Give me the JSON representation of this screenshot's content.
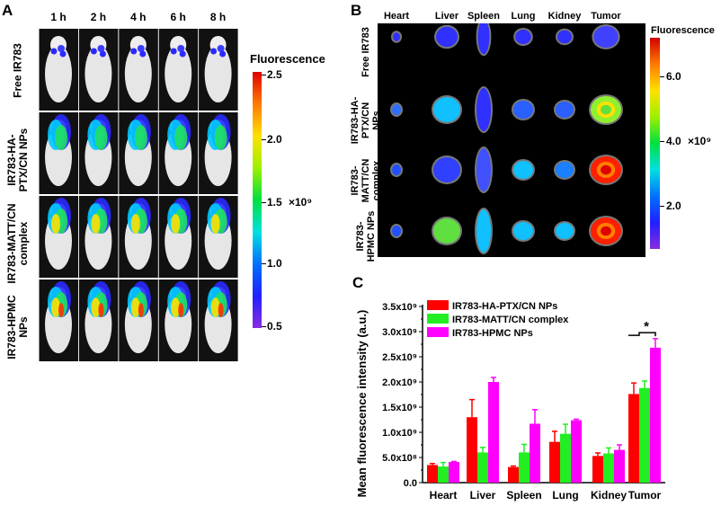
{
  "panelA": {
    "label": "A",
    "time_labels": [
      "1 h",
      "2 h",
      "4 h",
      "6 h",
      "8 h"
    ],
    "row_labels": [
      "Free IR783",
      "IR783-HA-PTX/CN NPs",
      "IR783-MATT/CN complex",
      "IR783-HPMC NPs"
    ],
    "colorbar": {
      "title": "Fluorescence",
      "ticks": [
        "2.5",
        "2.0",
        "1.5",
        "1.0",
        "0.5"
      ],
      "unit": "×10⁹",
      "range": [
        0.5,
        2.5
      ]
    }
  },
  "panelB": {
    "label": "B",
    "organ_labels": [
      "Heart",
      "Liver",
      "Spleen",
      "Lung",
      "Kidney",
      "Tumor"
    ],
    "row_labels": [
      "Free IR783",
      "IR783-HA-PTX/CN NPs",
      "IR783-MATT/CN complex",
      "IR783-HPMC NPs"
    ],
    "colorbar": {
      "title": "Fluorescence",
      "ticks": [
        "6.0",
        "4.0",
        "2.0"
      ],
      "unit": "×10⁹"
    }
  },
  "panelC": {
    "label": "C"
  },
  "chart_data": {
    "type": "bar",
    "ylabel": "Mean fluorescence intensity (a.u.)",
    "xlabel": "",
    "categories": [
      "Heart",
      "Liver",
      "Spleen",
      "Lung",
      "Kidney",
      "Tumor"
    ],
    "ylim": [
      0,
      3500000000.0
    ],
    "yticks": [
      "0.0",
      "5.0x10⁸",
      "1.0x10⁹",
      "1.5x10⁹",
      "2.0x10⁹",
      "2.5x10⁹",
      "3.0x10⁹",
      "3.5x10⁹"
    ],
    "legend_position": "top-left",
    "series": [
      {
        "name": "IR783-HA-PTX/CN NPs",
        "color": "#ff0000",
        "values": [
          350000000.0,
          1300000000.0,
          310000000.0,
          810000000.0,
          530000000.0,
          1760000000.0
        ],
        "errors": [
          30000000.0,
          350000000.0,
          20000000.0,
          210000000.0,
          60000000.0,
          220000000.0
        ]
      },
      {
        "name": "IR783-MATT/CN complex",
        "color": "#22ee22",
        "values": [
          320000000.0,
          600000000.0,
          600000000.0,
          970000000.0,
          580000000.0,
          1880000000.0
        ],
        "errors": [
          80000000.0,
          100000000.0,
          160000000.0,
          190000000.0,
          110000000.0,
          140000000.0
        ]
      },
      {
        "name": "IR783-HPMC NPs",
        "color": "#ff00ff",
        "values": [
          410000000.0,
          2000000000.0,
          1170000000.0,
          1240000000.0,
          650000000.0,
          2680000000.0
        ],
        "errors": [
          10000000.0,
          90000000.0,
          280000000.0,
          20000000.0,
          100000000.0,
          180000000.0
        ]
      }
    ],
    "annotations": [
      {
        "text": "*",
        "category": "Tumor"
      }
    ]
  }
}
